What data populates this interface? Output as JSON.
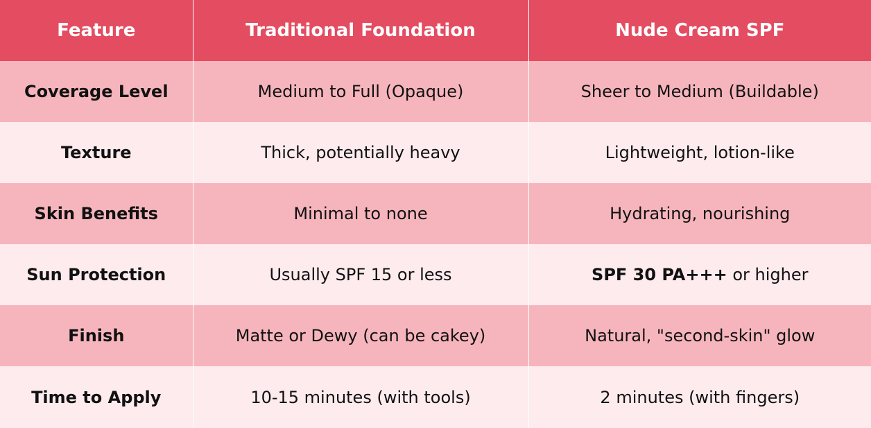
{
  "table": {
    "headers": [
      "Feature",
      "Traditional Foundation",
      "Nude Cream SPF"
    ],
    "rows": [
      {
        "feature": "Coverage Level",
        "traditional": "Medium to Full (Opaque)",
        "nude_cream": "Sheer to Medium (Buildable)"
      },
      {
        "feature": "Texture",
        "traditional": "Thick, potentially heavy",
        "nude_cream": "Lightweight, lotion-like"
      },
      {
        "feature": "Skin Benefits",
        "traditional": "Minimal to none",
        "nude_cream": "Hydrating, nourishing"
      },
      {
        "feature": "Sun Protection",
        "traditional": "Usually SPF 15 or less",
        "nude_cream_bold": "SPF 30 PA+++",
        "nude_cream_rest": " or higher"
      },
      {
        "feature": "Finish",
        "traditional": "Matte or Dewy (can be cakey)",
        "nude_cream": "Natural, \"second-skin\" glow"
      },
      {
        "feature": "Time to Apply",
        "traditional": "10-15 minutes (with tools)",
        "nude_cream": "2 minutes (with fingers)"
      }
    ]
  },
  "colors": {
    "header_bg": "#e44c61",
    "row_dark": "#f6b5bd",
    "row_light": "#fdebee"
  }
}
